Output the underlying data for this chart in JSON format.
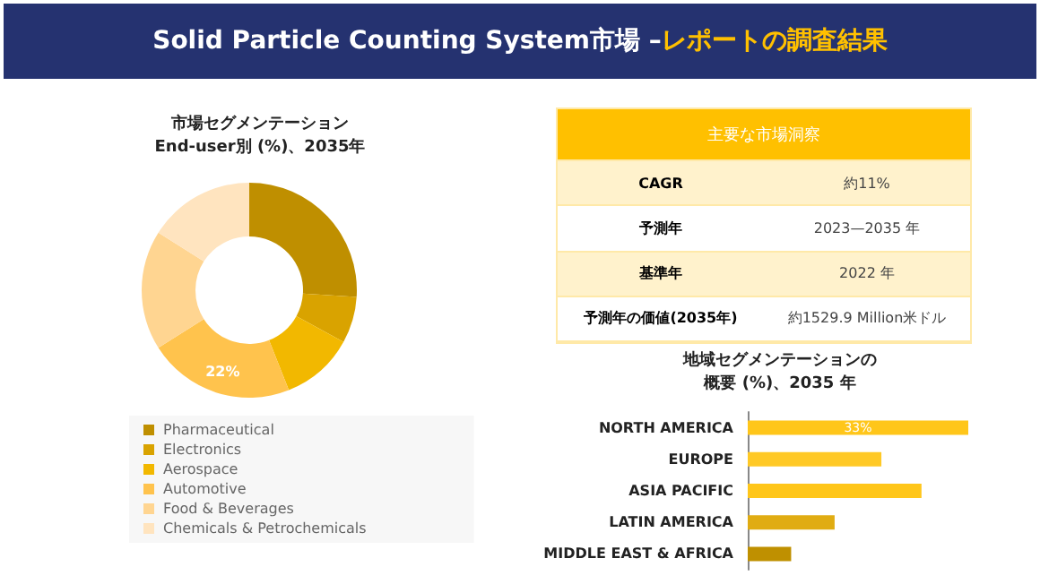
{
  "chart_data": [
    {
      "type": "other",
      "title": "Solid Particle Counting System市場 –",
      "subtitle": "レポートの調査結果"
    },
    {
      "type": "donut",
      "title": "市場セグメンテーション",
      "subtitle": "End-user別 (%)、2035年",
      "categories": [
        "Pharmaceutical",
        "Electronics",
        "Aerospace",
        "Automotive",
        "Food & Beverages",
        "Chemicals & Petrochemicals"
      ],
      "values": [
        26,
        7,
        11,
        22,
        18,
        16
      ],
      "colors": [
        "#bf8f00",
        "#d9a300",
        "#f2b800",
        "#ffc34d",
        "#ffd591",
        "#ffe4bf"
      ],
      "value_labels": [
        null,
        null,
        null,
        "22%",
        null,
        null
      ],
      "legend": "bottom"
    },
    {
      "type": "other",
      "title": "主要な市場洞察",
      "annotations": [
        "CAGR",
        "約11%",
        "予測年",
        "2023—2035 年",
        "基準年",
        "2022 年",
        "予測年の価値(2035年)",
        "約1529.9 Million米ドル"
      ]
    },
    {
      "type": "bar",
      "orientation": "horizontal",
      "title": "地域セグメンテーションの",
      "subtitle": "概要 (%)、2035 年",
      "categories": [
        "NORTH AMERICA",
        "EUROPE",
        "ASIA PACIFIC",
        "LATIN AMERICA",
        "MIDDLE EAST & AFRICA"
      ],
      "values": [
        33,
        20,
        26,
        13,
        6.5
      ],
      "colors": [
        "#ffc61a",
        "#ffc926",
        "#ffc61a",
        "#e0ac12",
        "#bf9000"
      ],
      "value_labels": [
        "33%",
        null,
        null,
        null,
        null
      ]
    }
  ]
}
